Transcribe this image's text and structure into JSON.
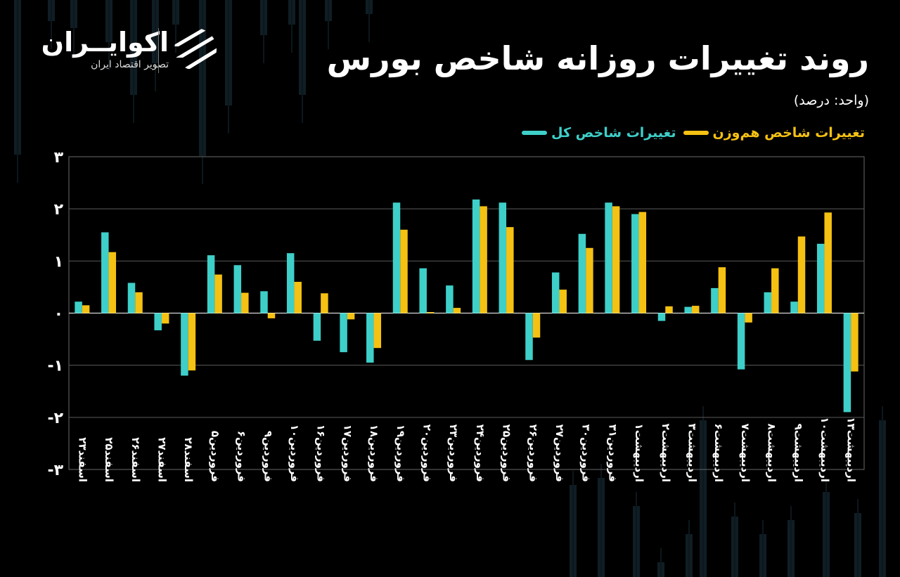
{
  "brand": {
    "name": "اکوایــران",
    "tagline": "تصویر اقتصاد ایران"
  },
  "header": {
    "title": "روند تغییرات روزانه شاخص بورس",
    "unit": "(واحد: درصد)"
  },
  "legend": [
    {
      "label": "تغییرات شاخص کل",
      "color": "#3ecfc9"
    },
    {
      "label": "تغییرات شاخص هم‌وزن",
      "color": "#f5c112"
    }
  ],
  "chart_data": {
    "type": "bar",
    "title": "روند تغییرات روزانه شاخص بورس",
    "xlabel": "",
    "ylabel": "",
    "ylim": [
      -3,
      3
    ],
    "yticks": [
      {
        "value": 3,
        "label": "۳"
      },
      {
        "value": 2,
        "label": "۲"
      },
      {
        "value": 1,
        "label": "۱"
      },
      {
        "value": 0,
        "label": "۰"
      },
      {
        "value": -1,
        "label": "-۱"
      },
      {
        "value": -2,
        "label": "-۲"
      },
      {
        "value": -3,
        "label": "-۳"
      }
    ],
    "grid": true,
    "legend_position": "top-right",
    "categories": [
      "اسفند۲۳",
      "اسفند۲۵",
      "اسفند۲۶",
      "اسفند۲۷",
      "اسفند۲۸",
      "فروردین۵",
      "فروردین۶",
      "فروردین۹",
      "فروردین۱۰",
      "فروردین۱۶",
      "فروردین۱۷",
      "فروردین۱۸",
      "فروردین۱۹",
      "فروردین۲۰",
      "فروردین۲۳",
      "فروردین۲۴",
      "فروردین۲۵",
      "فروردین۲۶",
      "فروردین۲۷",
      "فروردین۳۰",
      "فروردین۳۱",
      "اردیبهشت۱",
      "اردیبهشت۲",
      "اردیبهشت۳",
      "اردیبهشت۶",
      "اردیبهشت۷",
      "اردیبهشت۸",
      "اردیبهشت۹",
      "اردیبهشت۱۰",
      "اردیبهشت۱۳"
    ],
    "series": [
      {
        "name": "تغییرات شاخص کل",
        "color": "#3ecfc9",
        "values": [
          0.22,
          1.55,
          0.58,
          -0.33,
          -1.2,
          1.11,
          0.92,
          0.42,
          1.15,
          -0.53,
          -0.75,
          -0.95,
          2.12,
          0.86,
          0.53,
          2.18,
          2.12,
          -0.9,
          0.78,
          1.52,
          2.12,
          1.9,
          -0.15,
          0.12,
          0.48,
          -1.08,
          0.4,
          0.22,
          1.33,
          -1.9
        ]
      },
      {
        "name": "تغییرات شاخص هم‌وزن",
        "color": "#f5c112",
        "values": [
          0.15,
          1.17,
          0.4,
          -0.2,
          -1.1,
          0.74,
          0.39,
          -0.1,
          0.6,
          0.38,
          -0.12,
          -0.67,
          1.6,
          0.02,
          0.1,
          2.05,
          1.65,
          -0.47,
          0.45,
          1.25,
          2.05,
          1.94,
          0.13,
          0.14,
          0.88,
          -0.18,
          0.86,
          1.47,
          1.93,
          -1.12
        ]
      }
    ]
  }
}
